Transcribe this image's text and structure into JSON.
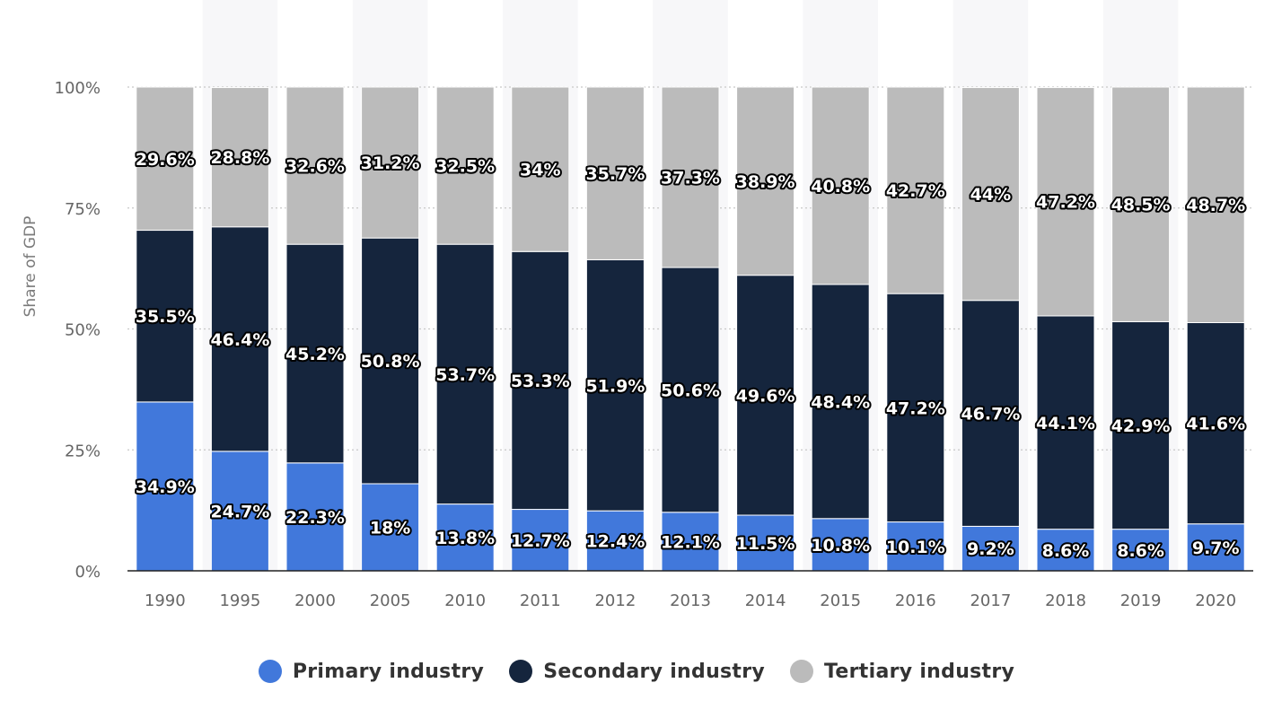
{
  "chart_data": {
    "type": "bar",
    "stacked": true,
    "categories": [
      "1990",
      "1995",
      "2000",
      "2005",
      "2010",
      "2011",
      "2012",
      "2013",
      "2014",
      "2015",
      "2016",
      "2017",
      "2018",
      "2019",
      "2020"
    ],
    "series": [
      {
        "name": "Primary industry",
        "color": "#4178db",
        "values": [
          34.9,
          24.7,
          22.3,
          18,
          13.8,
          12.7,
          12.4,
          12.1,
          11.5,
          10.8,
          10.1,
          9.2,
          8.6,
          8.6,
          9.7
        ],
        "labels": [
          "34.9%",
          "24.7%",
          "22.3%",
          "18%",
          "13.8%",
          "12.7%",
          "12.4%",
          "12.1%",
          "11.5%",
          "10.8%",
          "10.1%",
          "9.2%",
          "8.6%",
          "8.6%",
          "9.7%"
        ]
      },
      {
        "name": "Secondary industry",
        "color": "#15253d",
        "values": [
          35.5,
          46.4,
          45.2,
          50.8,
          53.7,
          53.3,
          51.9,
          50.6,
          49.6,
          48.4,
          47.2,
          46.7,
          44.1,
          42.9,
          41.6
        ],
        "labels": [
          "35.5%",
          "46.4%",
          "45.2%",
          "50.8%",
          "53.7%",
          "53.3%",
          "51.9%",
          "50.6%",
          "49.6%",
          "48.4%",
          "47.2%",
          "46.7%",
          "44.1%",
          "42.9%",
          "41.6%"
        ]
      },
      {
        "name": "Tertiary industry",
        "color": "#bbbbbb",
        "values": [
          29.6,
          28.8,
          32.6,
          31.2,
          32.5,
          34,
          35.7,
          37.3,
          38.9,
          40.8,
          42.7,
          44,
          47.2,
          48.5,
          48.7
        ],
        "labels": [
          "29.6%",
          "28.8%",
          "32.6%",
          "31.2%",
          "32.5%",
          "34%",
          "35.7%",
          "37.3%",
          "38.9%",
          "40.8%",
          "42.7%",
          "44%",
          "47.2%",
          "48.5%",
          "48.7%"
        ]
      }
    ],
    "ylabel": "Share of GDP",
    "xlabel": "",
    "ylim": [
      0,
      100
    ],
    "yticks": [
      "0%",
      "25%",
      "50%",
      "75%",
      "100%"
    ],
    "ytick_values": [
      0,
      25,
      50,
      75,
      100
    ],
    "grid": true,
    "legend_position": "bottom"
  },
  "legend": {
    "items": [
      {
        "label": "Primary industry",
        "color": "#4178db"
      },
      {
        "label": "Secondary industry",
        "color": "#15253d"
      },
      {
        "label": "Tertiary industry",
        "color": "#bbbbbb"
      }
    ]
  }
}
